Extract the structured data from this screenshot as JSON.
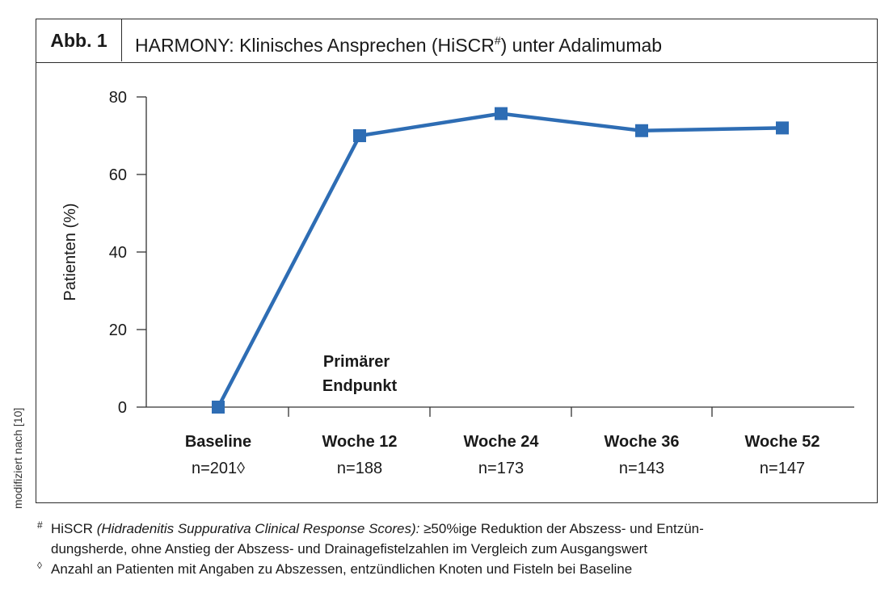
{
  "figure": {
    "label": "Abb. 1",
    "title_main": "HARMONY: Klinisches Ansprechen (HiSCR",
    "title_sup": "#",
    "title_end": ") unter Adalimumab"
  },
  "side_note": "modifiziert nach [10]",
  "annotation": {
    "line1": "Primärer",
    "line2": "Endpunkt"
  },
  "footnotes": {
    "fn1_mark": "#",
    "fn1_term": "HiSCR",
    "fn1_italic": "(Hidradenitis Suppurativa Clinical Response Scores):",
    "fn1_rest_line1": " ≥50%ige Reduktion der Abszess- und Entzün-",
    "fn1_rest_line2": "dungsherde, ohne Anstieg der Abszess- und Drainagefistelzahlen im Vergleich zum Ausgangswert",
    "fn2_mark": "◊",
    "fn2_text": "Anzahl an Patienten mit Angaben zu Abszessen, entzündlichen Knoten und Fisteln bei Baseline"
  },
  "chart_data": {
    "type": "line",
    "categories": [
      "Baseline",
      "Woche 12",
      "Woche 24",
      "Woche 36",
      "Woche 52"
    ],
    "n_labels": [
      "n=201◊",
      "n=188",
      "n=173",
      "n=143",
      "n=147"
    ],
    "values": [
      0,
      70,
      75.7,
      71.3,
      72
    ],
    "ylabel": "Patienten (%)",
    "xlabel": "",
    "ylim": [
      0,
      80
    ],
    "yticks": [
      0,
      20,
      40,
      60,
      80
    ],
    "grid": false,
    "line_color": "#2e6db4"
  }
}
